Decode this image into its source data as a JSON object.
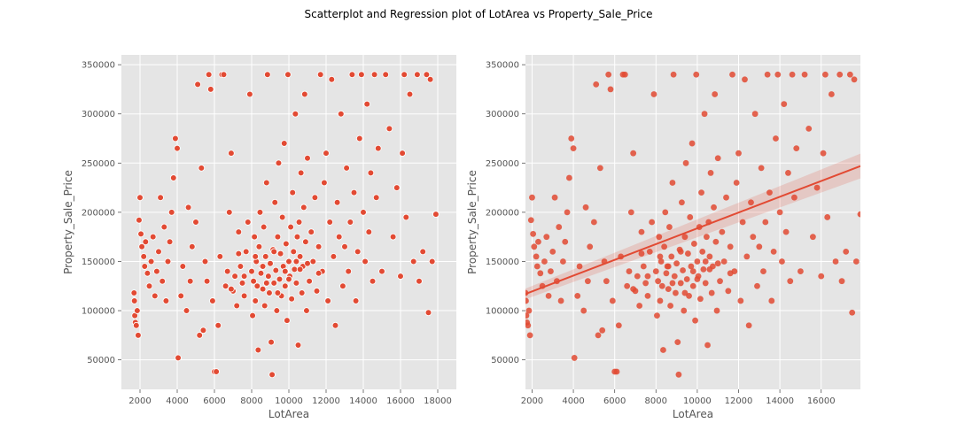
{
  "figure": {
    "suptitle": "Scatterplot and Regression plot of LotArea vs Property_Sale_Price",
    "colors": {
      "background": "#E5E5E5",
      "grid": "#FFFFFF",
      "marker": "#E24A33",
      "text": "#555555"
    }
  },
  "chart_data": [
    {
      "type": "scatter",
      "title": "",
      "xlabel": "LotArea",
      "ylabel": "Property_Sale_Price",
      "xlim": [
        1000,
        19000
      ],
      "ylim": [
        20000,
        360000
      ],
      "xticks": [
        2000,
        4000,
        6000,
        8000,
        10000,
        12000,
        14000,
        16000,
        18000
      ],
      "yticks": [
        50000,
        100000,
        150000,
        200000,
        250000,
        300000,
        350000
      ],
      "grid": true,
      "marker_edge": "white",
      "points": [
        [
          1680,
          118000
        ],
        [
          1700,
          110000
        ],
        [
          1720,
          95000
        ],
        [
          1750,
          88000
        ],
        [
          1800,
          85000
        ],
        [
          1850,
          100000
        ],
        [
          1900,
          75000
        ],
        [
          1950,
          192000
        ],
        [
          2000,
          215000
        ],
        [
          2050,
          178000
        ],
        [
          2100,
          165000
        ],
        [
          2200,
          155000
        ],
        [
          2250,
          145000
        ],
        [
          2300,
          170000
        ],
        [
          2400,
          138000
        ],
        [
          2500,
          125000
        ],
        [
          2600,
          150000
        ],
        [
          2700,
          175000
        ],
        [
          2800,
          115000
        ],
        [
          2900,
          140000
        ],
        [
          3000,
          160000
        ],
        [
          3100,
          215000
        ],
        [
          3200,
          130000
        ],
        [
          3300,
          185000
        ],
        [
          3400,
          110000
        ],
        [
          3500,
          150000
        ],
        [
          3600,
          170000
        ],
        [
          3700,
          200000
        ],
        [
          3800,
          235000
        ],
        [
          3900,
          275000
        ],
        [
          4000,
          265000
        ],
        [
          4050,
          52000
        ],
        [
          4200,
          115000
        ],
        [
          4300,
          145000
        ],
        [
          4500,
          100000
        ],
        [
          4600,
          205000
        ],
        [
          4700,
          130000
        ],
        [
          4800,
          165000
        ],
        [
          5000,
          190000
        ],
        [
          5100,
          330000
        ],
        [
          5200,
          75000
        ],
        [
          5300,
          245000
        ],
        [
          5400,
          80000
        ],
        [
          5500,
          150000
        ],
        [
          5600,
          130000
        ],
        [
          5700,
          340000
        ],
        [
          5800,
          325000
        ],
        [
          5900,
          110000
        ],
        [
          6000,
          38000
        ],
        [
          6100,
          38000
        ],
        [
          6200,
          85000
        ],
        [
          6300,
          155000
        ],
        [
          6400,
          340000
        ],
        [
          6500,
          340000
        ],
        [
          6600,
          125000
        ],
        [
          6700,
          140000
        ],
        [
          6800,
          200000
        ],
        [
          6900,
          260000
        ],
        [
          7000,
          120000
        ],
        [
          7100,
          135000
        ],
        [
          7200,
          105000
        ],
        [
          7300,
          180000
        ],
        [
          7400,
          145000
        ],
        [
          7500,
          128000
        ],
        [
          7600,
          115000
        ],
        [
          7700,
          160000
        ],
        [
          7800,
          190000
        ],
        [
          7900,
          320000
        ],
        [
          8000,
          140000
        ],
        [
          8050,
          95000
        ],
        [
          8100,
          130000
        ],
        [
          8150,
          175000
        ],
        [
          8200,
          110000
        ],
        [
          8250,
          150000
        ],
        [
          8300,
          125000
        ],
        [
          8350,
          60000
        ],
        [
          8400,
          165000
        ],
        [
          8450,
          200000
        ],
        [
          8500,
          138000
        ],
        [
          8550,
          145000
        ],
        [
          8600,
          122000
        ],
        [
          8650,
          185000
        ],
        [
          8700,
          105000
        ],
        [
          8750,
          155000
        ],
        [
          8800,
          230000
        ],
        [
          8850,
          340000
        ],
        [
          8900,
          135000
        ],
        [
          8950,
          118000
        ],
        [
          9000,
          148000
        ],
        [
          9050,
          68000
        ],
        [
          9100,
          35000
        ],
        [
          9150,
          162000
        ],
        [
          9200,
          128000
        ],
        [
          9250,
          210000
        ],
        [
          9300,
          141000
        ],
        [
          9350,
          100000
        ],
        [
          9400,
          175000
        ],
        [
          9450,
          250000
        ],
        [
          9500,
          132000
        ],
        [
          9550,
          158000
        ],
        [
          9600,
          115000
        ],
        [
          9650,
          195000
        ],
        [
          9700,
          145000
        ],
        [
          9750,
          270000
        ],
        [
          9800,
          125000
        ],
        [
          9850,
          168000
        ],
        [
          9900,
          90000
        ],
        [
          9950,
          340000
        ],
        [
          10000,
          150000
        ],
        [
          10050,
          135000
        ],
        [
          10100,
          185000
        ],
        [
          10150,
          112000
        ],
        [
          10200,
          220000
        ],
        [
          10250,
          160000
        ],
        [
          10300,
          142000
        ],
        [
          10350,
          300000
        ],
        [
          10400,
          128000
        ],
        [
          10450,
          175000
        ],
        [
          10500,
          65000
        ],
        [
          10550,
          190000
        ],
        [
          10600,
          155000
        ],
        [
          10650,
          240000
        ],
        [
          10700,
          118000
        ],
        [
          10750,
          145000
        ],
        [
          10800,
          205000
        ],
        [
          10850,
          320000
        ],
        [
          10900,
          170000
        ],
        [
          10950,
          100000
        ],
        [
          11000,
          255000
        ],
        [
          11100,
          130000
        ],
        [
          11200,
          180000
        ],
        [
          11300,
          150000
        ],
        [
          11400,
          215000
        ],
        [
          11500,
          120000
        ],
        [
          11600,
          165000
        ],
        [
          11700,
          340000
        ],
        [
          11800,
          140000
        ],
        [
          11900,
          230000
        ],
        [
          12000,
          260000
        ],
        [
          12100,
          110000
        ],
        [
          12200,
          190000
        ],
        [
          12300,
          335000
        ],
        [
          12400,
          155000
        ],
        [
          12500,
          85000
        ],
        [
          12600,
          210000
        ],
        [
          12700,
          175000
        ],
        [
          12800,
          300000
        ],
        [
          12900,
          125000
        ],
        [
          13000,
          165000
        ],
        [
          13100,
          245000
        ],
        [
          13200,
          140000
        ],
        [
          13300,
          190000
        ],
        [
          13400,
          340000
        ],
        [
          13500,
          220000
        ],
        [
          13600,
          110000
        ],
        [
          13700,
          160000
        ],
        [
          13800,
          275000
        ],
        [
          13900,
          340000
        ],
        [
          14000,
          200000
        ],
        [
          14100,
          150000
        ],
        [
          14200,
          310000
        ],
        [
          14300,
          180000
        ],
        [
          14400,
          240000
        ],
        [
          14500,
          130000
        ],
        [
          14600,
          340000
        ],
        [
          14700,
          215000
        ],
        [
          14800,
          265000
        ],
        [
          15000,
          140000
        ],
        [
          15200,
          340000
        ],
        [
          15400,
          285000
        ],
        [
          15600,
          175000
        ],
        [
          15800,
          225000
        ],
        [
          16000,
          135000
        ],
        [
          16100,
          260000
        ],
        [
          16200,
          340000
        ],
        [
          16300,
          195000
        ],
        [
          16500,
          320000
        ],
        [
          16700,
          150000
        ],
        [
          16900,
          340000
        ],
        [
          17000,
          130000
        ],
        [
          17200,
          160000
        ],
        [
          17400,
          340000
        ],
        [
          17500,
          98000
        ],
        [
          17600,
          335000
        ],
        [
          17700,
          150000
        ],
        [
          17900,
          198000
        ],
        [
          8600,
          145000
        ],
        [
          9200,
          160000
        ],
        [
          9800,
          140000
        ],
        [
          10400,
          150000
        ],
        [
          8800,
          128000
        ],
        [
          9400,
          118000
        ],
        [
          10000,
          132000
        ],
        [
          10600,
          142000
        ],
        [
          7600,
          135000
        ],
        [
          8200,
          155000
        ],
        [
          11000,
          148000
        ],
        [
          11600,
          138000
        ],
        [
          6900,
          122000
        ],
        [
          7300,
          158000
        ]
      ]
    },
    {
      "type": "scatter",
      "title": "",
      "xlabel": "LotArea",
      "ylabel": "Property_Sale_Price",
      "xlim": [
        1680,
        17900
      ],
      "ylim": [
        20000,
        360000
      ],
      "xticks": [
        2000,
        4000,
        6000,
        8000,
        10000,
        12000,
        14000,
        16000
      ],
      "yticks": [
        50000,
        100000,
        150000,
        200000,
        250000,
        300000,
        350000
      ],
      "grid": true,
      "regression": {
        "x": [
          1680,
          17900
        ],
        "y": [
          117000,
          247000
        ],
        "ci": 9000
      },
      "points_ref": 0
    }
  ]
}
